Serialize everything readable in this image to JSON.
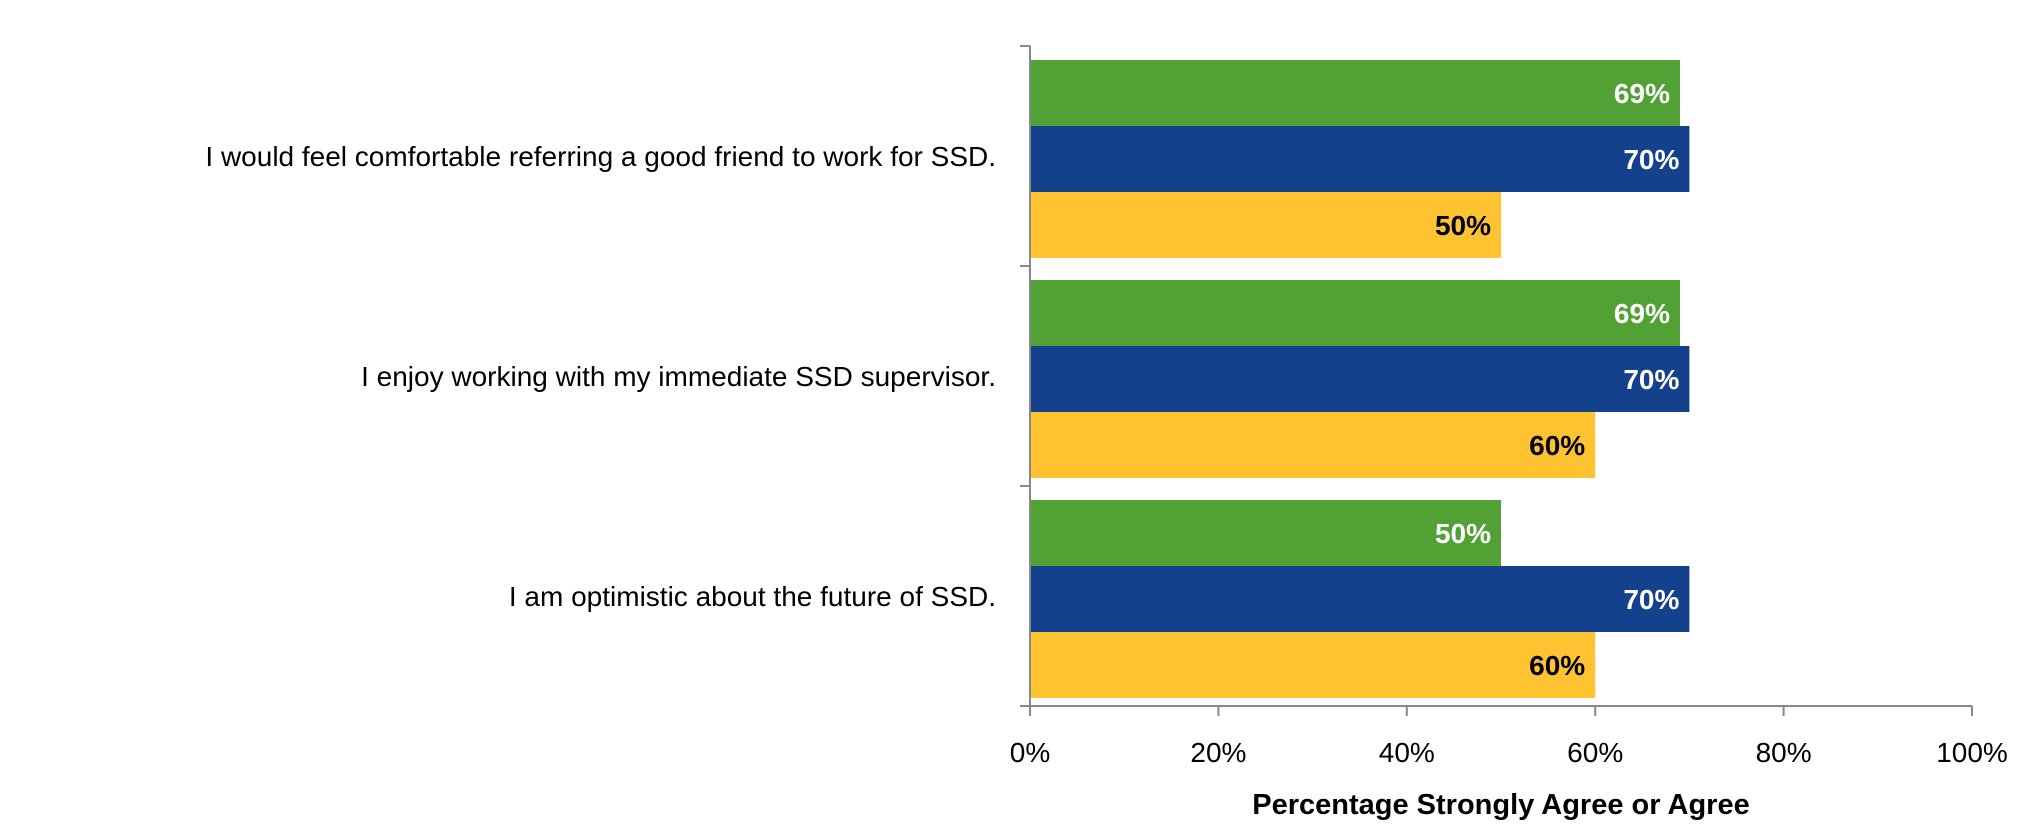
{
  "chart_data": {
    "type": "bar",
    "orientation": "horizontal",
    "categories": [
      "I would feel comfortable referring a good friend to work for SSD.",
      "I enjoy working with my immediate SSD supervisor.",
      "I am optimistic about the future of SSD."
    ],
    "series": [
      {
        "color": "#52a135",
        "label_color": "#ffffff",
        "values": [
          69,
          69,
          50
        ]
      },
      {
        "color": "#14418b",
        "label_color": "#ffffff",
        "values": [
          70,
          70,
          70
        ]
      },
      {
        "color": "#ffc231",
        "label_color": "#000000",
        "values": [
          50,
          60,
          60
        ]
      }
    ],
    "xlabel": "Percentage Strongly Agree or Agree",
    "xlim": [
      0,
      100
    ],
    "x_ticks": [
      "0%",
      "20%",
      "40%",
      "60%",
      "80%",
      "100%"
    ],
    "value_suffix": "%",
    "grid": false,
    "legend": "none"
  }
}
